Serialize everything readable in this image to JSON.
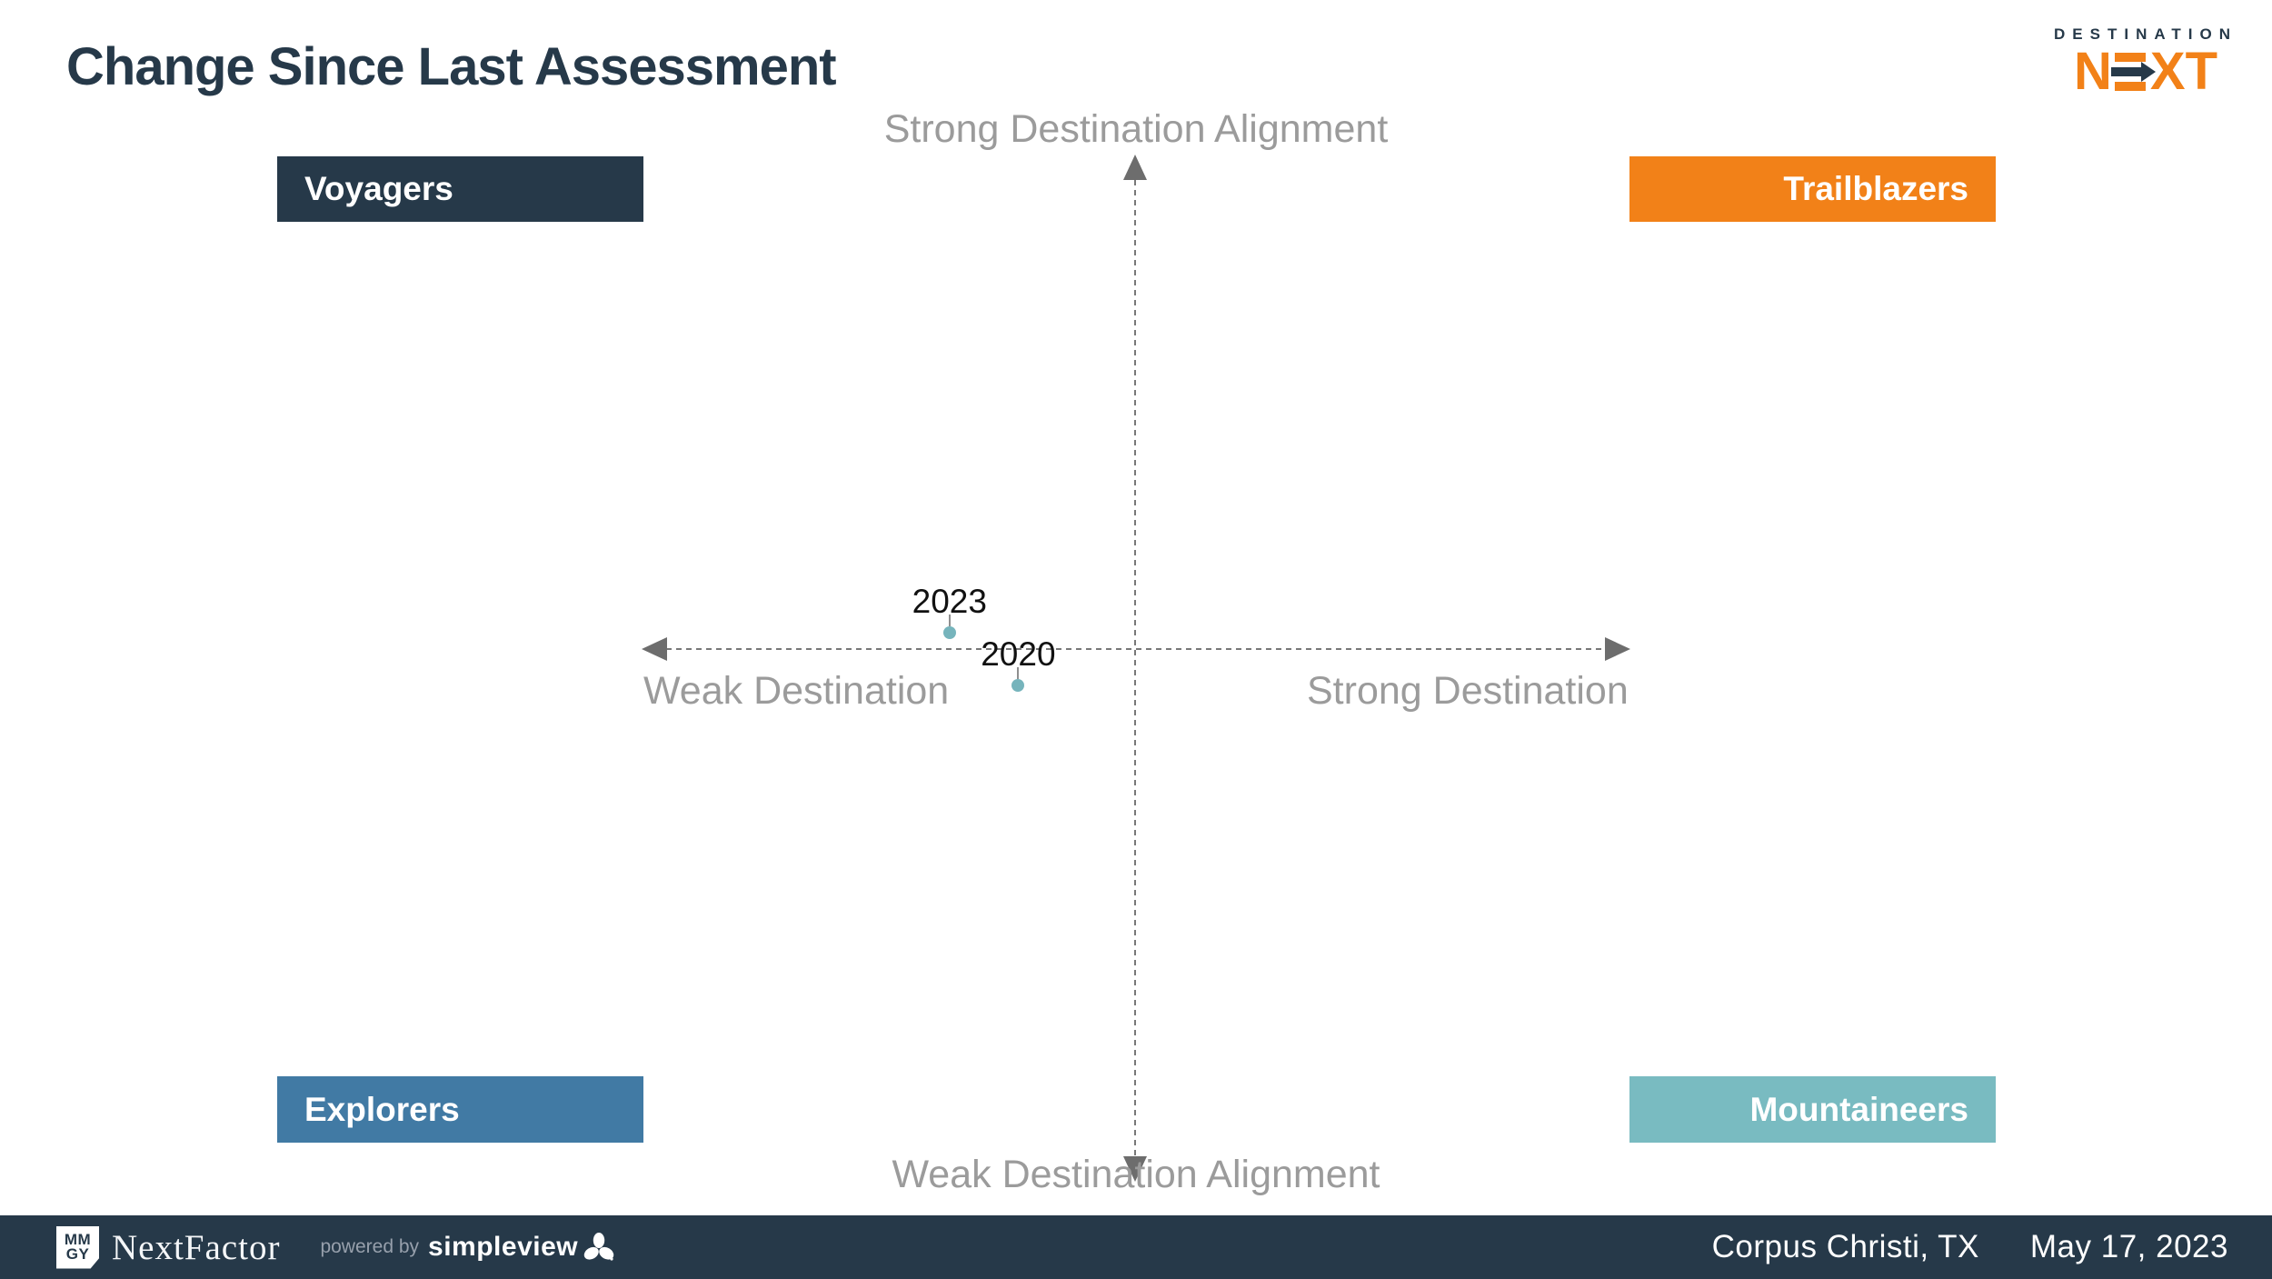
{
  "title": "Change Since Last Assessment",
  "logo": {
    "name": "DestinationNEXT",
    "line1": "DESTINATION",
    "n": "N",
    "xt": "XT"
  },
  "quadrants": {
    "voyagers": {
      "label": "Voyagers",
      "color": "#263949"
    },
    "trailblazers": {
      "label": "Trailblazers",
      "color": "#F28118"
    },
    "explorers": {
      "label": "Explorers",
      "color": "#417AA4"
    },
    "mountaineers": {
      "label": "Mountaineers",
      "color": "#79BBC1"
    }
  },
  "chart_data": {
    "type": "scatter",
    "title": "Change Since Last Assessment",
    "axes": {
      "y_top": "Strong Destination Alignment",
      "y_bottom": "Weak Destination Alignment",
      "x_left": "Weak Destination",
      "x_right": "Strong Destination"
    },
    "x_range": [
      -1,
      1
    ],
    "y_range": [
      -1,
      1
    ],
    "grid": false,
    "quadrant_labels": [
      "Voyagers",
      "Trailblazers",
      "Explorers",
      "Mountaineers"
    ],
    "points": [
      {
        "label": "2023",
        "x": -0.38,
        "y": 0.033
      },
      {
        "label": "2020",
        "x": -0.24,
        "y": -0.072
      }
    ],
    "point_color": "#76B4BC"
  },
  "footer": {
    "badge_line1": "MM",
    "badge_line2": "GY",
    "brand": "NextFactor",
    "powered_by": "powered by",
    "powered_brand": "simpleview",
    "location": "Corpus Christi, TX",
    "date": "May 17, 2023"
  },
  "colors": {
    "navy": "#263949",
    "orange": "#F28118",
    "blue": "#417AA4",
    "teal": "#79BBC1",
    "dot": "#76B4BC",
    "axis_text": "#9B9B9B",
    "axis_line": "#6E6E6E"
  }
}
